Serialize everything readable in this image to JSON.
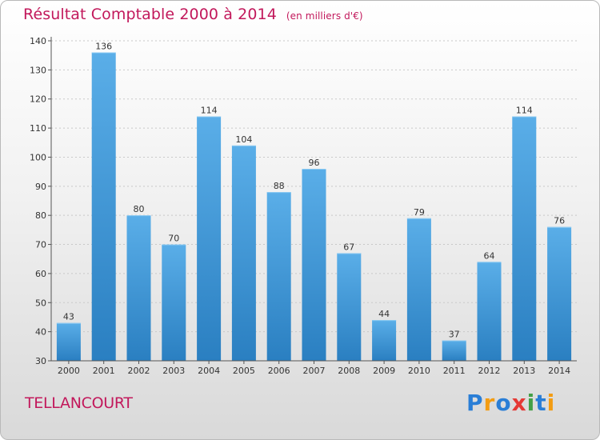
{
  "header": {
    "title": "Résultat Comptable 2000 à 2014",
    "unit": "(en milliers d'€)"
  },
  "footer": {
    "commune": "TELLANCOURT",
    "logo_text": "Proxiti",
    "logo_colors": [
      "#2a7ed6",
      "#f39c12",
      "#2a7ed6",
      "#e53935",
      "#43a047",
      "#2a7ed6",
      "#f39c12"
    ]
  },
  "colors": {
    "title": "#c2185b",
    "bar_light": "#5aaee8",
    "bar_dark": "#2a7fc1",
    "axis": "#555555",
    "grid": "#c8c8c8"
  },
  "chart_data": {
    "type": "bar",
    "title": "Résultat Comptable 2000 à 2014",
    "subtitle": "(en milliers d'€)",
    "xlabel": "",
    "ylabel": "",
    "ylim": [
      30,
      140
    ],
    "yticks": [
      30,
      40,
      50,
      60,
      70,
      80,
      90,
      100,
      110,
      120,
      130,
      140
    ],
    "grid": true,
    "categories": [
      "2000",
      "2001",
      "2002",
      "2003",
      "2004",
      "2005",
      "2006",
      "2007",
      "2008",
      "2009",
      "2010",
      "2011",
      "2012",
      "2013",
      "2014"
    ],
    "values": [
      43,
      136,
      80,
      70,
      114,
      104,
      88,
      96,
      67,
      44,
      79,
      37,
      64,
      114,
      76
    ]
  }
}
